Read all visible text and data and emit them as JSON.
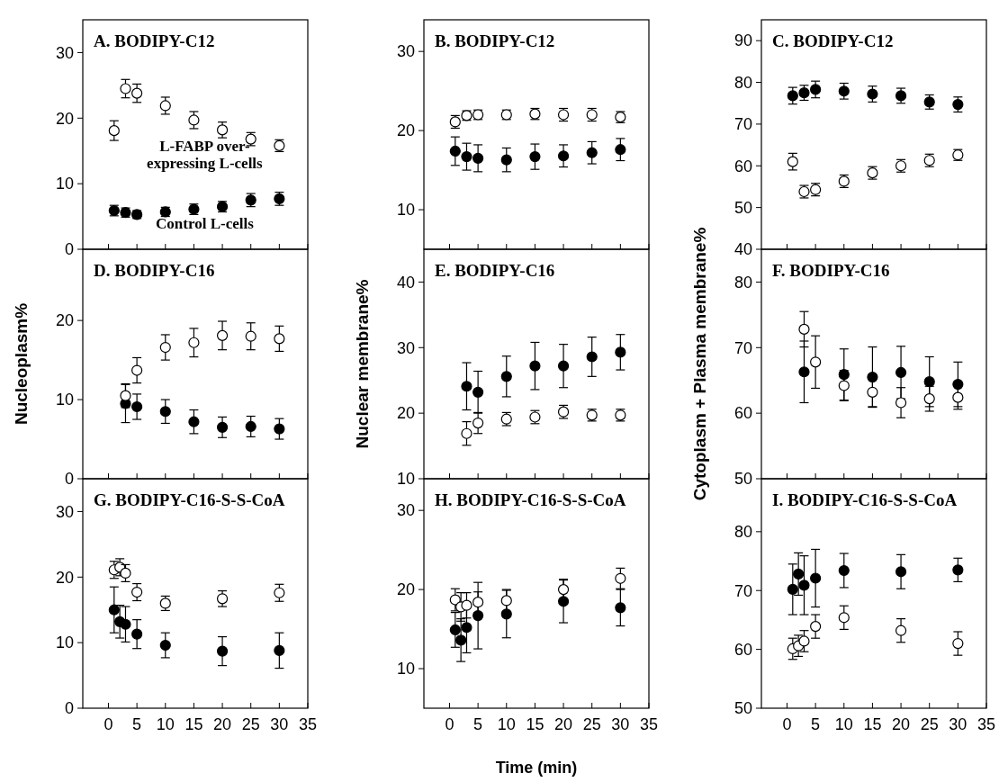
{
  "chart_data": [
    {
      "type": "scatter",
      "title": "A.  BODIPY-C12",
      "xlim": [
        -4.5,
        35
      ],
      "xticks": [
        0,
        5,
        10,
        15,
        20,
        25,
        30,
        35
      ],
      "ylim": [
        0,
        35
      ],
      "yticks": [
        0,
        10,
        20,
        30
      ],
      "tick_labels": "y",
      "marker": "circle",
      "grid": false,
      "series": [
        {
          "name": "Control L-cells",
          "color": "#000000",
          "x": [
            1,
            3,
            5,
            10,
            15,
            20,
            25,
            30
          ],
          "values": [
            5.9,
            5.6,
            5.3,
            5.7,
            6.1,
            6.5,
            7.5,
            7.7
          ],
          "errors": [
            0.8,
            0.7,
            0.6,
            0.7,
            0.8,
            0.8,
            1.0,
            1.0
          ]
        },
        {
          "name": "L-FABP over-expressing L-cells",
          "color": "#ffffff",
          "x": [
            1,
            3,
            5,
            10,
            15,
            20,
            25,
            30
          ],
          "values": [
            18.1,
            24.5,
            23.8,
            21.9,
            19.7,
            18.2,
            16.8,
            15.8
          ],
          "errors": [
            1.5,
            1.4,
            1.4,
            1.3,
            1.3,
            1.2,
            1.0,
            0.9
          ]
        }
      ]
    },
    {
      "type": "scatter",
      "title": "B.  BODIPY-C12",
      "xlim": [
        -4.5,
        35
      ],
      "xticks": [
        0,
        5,
        10,
        15,
        20,
        25,
        30,
        35
      ],
      "ylim": [
        5,
        34
      ],
      "yticks": [
        10,
        20,
        30
      ],
      "tick_labels": "y",
      "marker": "circle",
      "grid": false,
      "series": [
        {
          "color": "#000000",
          "x": [
            1,
            3,
            5,
            10,
            15,
            20,
            25,
            30
          ],
          "values": [
            17.4,
            16.7,
            16.5,
            16.3,
            16.7,
            16.8,
            17.2,
            17.6
          ],
          "errors": [
            1.8,
            1.7,
            1.7,
            1.5,
            1.6,
            1.4,
            1.4,
            1.4
          ]
        },
        {
          "color": "#ffffff",
          "x": [
            1,
            3,
            5,
            10,
            15,
            20,
            25,
            30
          ],
          "values": [
            21.1,
            21.9,
            22.0,
            22.0,
            22.1,
            22.0,
            22.0,
            21.7
          ],
          "errors": [
            0.8,
            0.6,
            0.6,
            0.6,
            0.7,
            0.8,
            0.8,
            0.7
          ]
        }
      ]
    },
    {
      "type": "scatter",
      "title": "C.  BODIPY-C12",
      "xlim": [
        -4.5,
        35
      ],
      "xticks": [
        0,
        5,
        10,
        15,
        20,
        25,
        30,
        35
      ],
      "ylim": [
        40,
        95
      ],
      "yticks": [
        40,
        50,
        60,
        70,
        80,
        90
      ],
      "tick_labels": "y",
      "marker": "circle",
      "grid": false,
      "series": [
        {
          "color": "#000000",
          "x": [
            1,
            3,
            5,
            10,
            15,
            20,
            25,
            30
          ],
          "values": [
            76.8,
            77.5,
            78.3,
            77.9,
            77.2,
            76.8,
            75.3,
            74.7
          ],
          "errors": [
            2.0,
            1.8,
            2.0,
            1.9,
            1.9,
            1.8,
            1.7,
            1.8
          ]
        },
        {
          "color": "#ffffff",
          "x": [
            1,
            3,
            5,
            10,
            15,
            20,
            25,
            30
          ],
          "values": [
            61.0,
            53.8,
            54.3,
            56.3,
            58.3,
            60.0,
            61.3,
            62.6
          ],
          "errors": [
            2.0,
            1.5,
            1.5,
            1.5,
            1.5,
            1.5,
            1.5,
            1.3
          ]
        }
      ]
    },
    {
      "type": "scatter",
      "title": "D.  BODIPY-C16",
      "ylabel": "Nucleoplasm%",
      "xlim": [
        -4.5,
        35
      ],
      "xticks": [
        0,
        5,
        10,
        15,
        20,
        25,
        30,
        35
      ],
      "ylim": [
        0,
        29
      ],
      "yticks": [
        0,
        10,
        20
      ],
      "tick_labels": "y",
      "marker": "circle",
      "grid": false,
      "series": [
        {
          "color": "#000000",
          "x": [
            3,
            5,
            10,
            15,
            20,
            25,
            30
          ],
          "values": [
            9.5,
            9.1,
            8.5,
            7.2,
            6.5,
            6.6,
            6.3
          ],
          "errors": [
            2.4,
            1.6,
            1.5,
            1.5,
            1.3,
            1.3,
            1.3
          ]
        },
        {
          "color": "#ffffff",
          "x": [
            3,
            5,
            10,
            15,
            20,
            25,
            30
          ],
          "values": [
            10.5,
            13.7,
            16.6,
            17.2,
            18.1,
            18.0,
            17.7
          ],
          "errors": [
            1.5,
            1.6,
            1.6,
            1.8,
            1.8,
            1.7,
            1.6
          ]
        }
      ]
    },
    {
      "type": "scatter",
      "title": "E.  BODIPY-C16",
      "ylabel": "Nuclear membrane%",
      "xlim": [
        -4.5,
        35
      ],
      "xticks": [
        0,
        5,
        10,
        15,
        20,
        25,
        30,
        35
      ],
      "ylim": [
        10,
        45
      ],
      "yticks": [
        10,
        20,
        30,
        40
      ],
      "tick_labels": "y",
      "marker": "circle",
      "grid": false,
      "series": [
        {
          "color": "#000000",
          "x": [
            3,
            5,
            10,
            15,
            20,
            25,
            30
          ],
          "values": [
            24.1,
            23.2,
            25.6,
            27.2,
            27.2,
            28.6,
            29.3
          ],
          "errors": [
            3.6,
            3.2,
            3.1,
            3.6,
            3.3,
            3.0,
            2.7
          ]
        },
        {
          "color": "#ffffff",
          "x": [
            3,
            5,
            10,
            15,
            20,
            25,
            30
          ],
          "values": [
            16.9,
            18.5,
            19.1,
            19.4,
            20.2,
            19.7,
            19.7
          ],
          "errors": [
            1.8,
            1.6,
            1.0,
            1.0,
            1.0,
            0.9,
            0.9
          ]
        }
      ]
    },
    {
      "type": "scatter",
      "title": "F.  BODIPY-C16",
      "ylabel": "Cytoplasm + Plasma membrane%",
      "xlim": [
        -4.5,
        35
      ],
      "xticks": [
        0,
        5,
        10,
        15,
        20,
        25,
        30,
        35
      ],
      "ylim": [
        50,
        85
      ],
      "yticks": [
        50,
        60,
        70,
        80
      ],
      "tick_labels": "y",
      "marker": "circle",
      "grid": false,
      "series": [
        {
          "color": "#000000",
          "x": [
            3,
            5,
            10,
            15,
            20,
            25,
            30
          ],
          "values": [
            66.3,
            null,
            65.9,
            65.5,
            66.2,
            64.8,
            64.4
          ],
          "errors": [
            4.7,
            null,
            3.9,
            4.6,
            4.0,
            3.8,
            3.4
          ]
        },
        {
          "color": "#ffffff",
          "x": [
            3,
            5,
            10,
            15,
            20,
            25,
            30
          ],
          "values": [
            72.8,
            67.8,
            64.2,
            63.2,
            61.6,
            62.2,
            62.4
          ],
          "errors": [
            2.7,
            4.0,
            2.3,
            2.2,
            2.3,
            1.9,
            1.8
          ]
        }
      ]
    },
    {
      "type": "scatter",
      "title": "G. BODIPY-C16-S-S-CoA",
      "xlim": [
        -4.5,
        35
      ],
      "xticks": [
        0,
        5,
        10,
        15,
        20,
        25,
        30,
        35
      ],
      "ylim": [
        0,
        35
      ],
      "yticks": [
        0,
        10,
        20,
        30
      ],
      "marker": "circle",
      "grid": false,
      "series": [
        {
          "color": "#000000",
          "x": [
            1,
            2,
            3,
            5,
            10,
            20,
            30
          ],
          "values": [
            15.0,
            13.2,
            12.8,
            11.3,
            9.6,
            8.7,
            8.8
          ],
          "errors": [
            3.5,
            2.5,
            2.7,
            2.2,
            1.9,
            2.2,
            2.7
          ]
        },
        {
          "color": "#ffffff",
          "x": [
            1,
            2,
            3,
            5,
            10,
            20,
            30
          ],
          "values": [
            21.1,
            21.5,
            20.6,
            17.7,
            16.0,
            16.7,
            17.6
          ],
          "errors": [
            1.3,
            1.3,
            1.3,
            1.3,
            1.1,
            1.2,
            1.3
          ]
        }
      ]
    },
    {
      "type": "scatter",
      "title": "H. BODIPY-C16-S-S-CoA",
      "xlabel": "Time (min)",
      "xlim": [
        -4.5,
        35
      ],
      "xticks": [
        0,
        5,
        10,
        15,
        20,
        25,
        30,
        35
      ],
      "ylim": [
        5,
        34
      ],
      "yticks": [
        10,
        20,
        30
      ],
      "marker": "circle",
      "grid": false,
      "series": [
        {
          "color": "#000000",
          "x": [
            1,
            2,
            3,
            5,
            10,
            20,
            30
          ],
          "values": [
            14.9,
            13.6,
            15.2,
            16.7,
            16.9,
            18.5,
            17.7
          ],
          "errors": [
            2.2,
            2.7,
            3.2,
            4.2,
            3.0,
            2.7,
            2.3
          ]
        },
        {
          "color": "#ffffff",
          "x": [
            1,
            2,
            3,
            5,
            10,
            20,
            30
          ],
          "values": [
            18.7,
            17.8,
            18.0,
            18.4,
            18.6,
            20.0,
            21.4
          ],
          "errors": [
            1.4,
            1.8,
            1.6,
            1.3,
            1.4,
            1.3,
            1.3
          ]
        }
      ]
    },
    {
      "type": "scatter",
      "title": "I. BODIPY-C16-S-S-CoA",
      "xlim": [
        -4.5,
        35
      ],
      "xticks": [
        0,
        5,
        10,
        15,
        20,
        25,
        30,
        35
      ],
      "ylim": [
        50,
        89
      ],
      "yticks": [
        50,
        60,
        70,
        80
      ],
      "marker": "circle",
      "grid": false,
      "series": [
        {
          "color": "#000000",
          "x": [
            1,
            2,
            3,
            5,
            10,
            20,
            30
          ],
          "values": [
            70.2,
            72.8,
            70.9,
            72.1,
            73.4,
            73.2,
            73.5
          ],
          "errors": [
            4.3,
            3.6,
            5.0,
            4.9,
            2.9,
            2.9,
            2.0
          ]
        },
        {
          "color": "#ffffff",
          "x": [
            1,
            2,
            3,
            5,
            10,
            20,
            30
          ],
          "values": [
            60.1,
            60.6,
            61.4,
            63.9,
            65.4,
            63.2,
            61.0
          ],
          "errors": [
            1.8,
            1.8,
            1.8,
            2.0,
            2.0,
            2.0,
            2.0
          ]
        }
      ]
    }
  ]
}
